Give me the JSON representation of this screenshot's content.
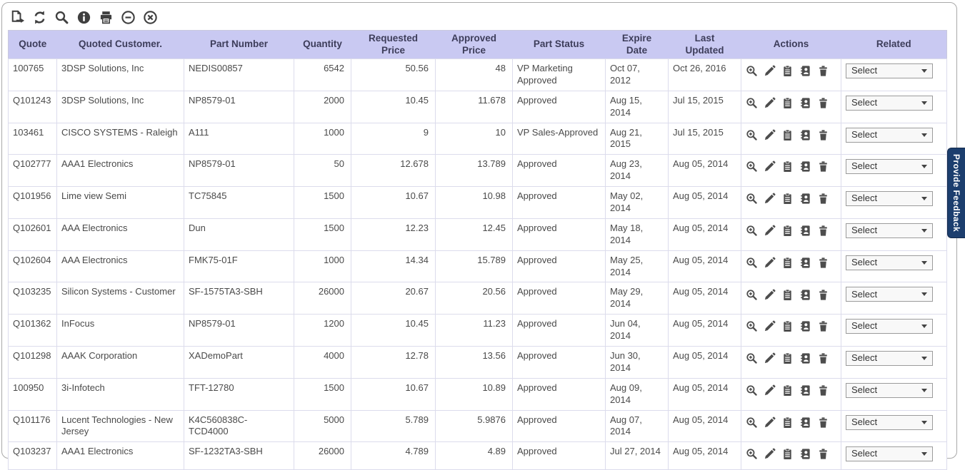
{
  "toolbar": {
    "icons": [
      {
        "name": "export-icon"
      },
      {
        "name": "refresh-icon"
      },
      {
        "name": "search-icon"
      },
      {
        "name": "info-icon"
      },
      {
        "name": "print-icon"
      },
      {
        "name": "minimize-icon"
      },
      {
        "name": "close-icon"
      }
    ]
  },
  "table": {
    "columns": [
      {
        "key": "quote",
        "label": "Quote"
      },
      {
        "key": "customer",
        "label": "Quoted Customer."
      },
      {
        "key": "part",
        "label": "Part Number"
      },
      {
        "key": "qty",
        "label": "Quantity"
      },
      {
        "key": "req_price",
        "label": "Requested Price"
      },
      {
        "key": "appr_price",
        "label": "Approved Price"
      },
      {
        "key": "status",
        "label": "Part Status"
      },
      {
        "key": "expire",
        "label": "Expire Date"
      },
      {
        "key": "updated",
        "label": "Last Updated"
      },
      {
        "key": "actions",
        "label": "Actions"
      },
      {
        "key": "related",
        "label": "Related"
      }
    ],
    "action_icons": [
      "zoom-icon",
      "edit-icon",
      "copy-icon",
      "contact-icon",
      "delete-icon"
    ],
    "related_default": "Select",
    "rows": [
      {
        "quote": "100765",
        "customer": "3DSP Solutions, Inc",
        "part": "NEDIS00857",
        "qty": "6542",
        "req_price": "50.56",
        "appr_price": "48",
        "status": "VP Marketing Approved",
        "expire": "Oct 07,\n2012",
        "updated": "Oct 26, 2016"
      },
      {
        "quote": "Q101243",
        "customer": "3DSP Solutions, Inc",
        "part": "NP8579-01",
        "qty": "2000",
        "req_price": "10.45",
        "appr_price": "11.678",
        "status": "Approved",
        "expire": "Aug 15,\n2014",
        "updated": "Jul 15, 2015"
      },
      {
        "quote": "103461",
        "customer": "CISCO SYSTEMS - Raleigh",
        "part": "A111",
        "qty": "1000",
        "req_price": "9",
        "appr_price": "10",
        "status": "VP Sales-Approved",
        "expire": "Aug 21,\n2015",
        "updated": "Jul 15, 2015"
      },
      {
        "quote": "Q102777",
        "customer": "AAA1 Electronics",
        "part": "NP8579-01",
        "qty": "50",
        "req_price": "12.678",
        "appr_price": "13.789",
        "status": "Approved",
        "expire": "Aug 23,\n2014",
        "updated": "Aug 05, 2014"
      },
      {
        "quote": "Q101956",
        "customer": "Lime view Semi",
        "part": "TC75845",
        "qty": "1500",
        "req_price": "10.67",
        "appr_price": "10.98",
        "status": "Approved",
        "expire": "May 02,\n2014",
        "updated": "Aug 05, 2014"
      },
      {
        "quote": "Q102601",
        "customer": "AAA Electronics",
        "part": "Dun",
        "qty": "1500",
        "req_price": "12.23",
        "appr_price": "12.45",
        "status": "Approved",
        "expire": "May 18,\n2014",
        "updated": "Aug 05, 2014"
      },
      {
        "quote": "Q102604",
        "customer": "AAA Electronics",
        "part": "FMK75-01F",
        "qty": "1000",
        "req_price": "14.34",
        "appr_price": "15.789",
        "status": "Approved",
        "expire": "May 25,\n2014",
        "updated": "Aug 05, 2014"
      },
      {
        "quote": "Q103235",
        "customer": "Silicon Systems - Customer",
        "part": "SF-1575TA3-SBH",
        "qty": "26000",
        "req_price": "20.67",
        "appr_price": "20.56",
        "status": "Approved",
        "expire": "May 29,\n2014",
        "updated": "Aug 05, 2014"
      },
      {
        "quote": "Q101362",
        "customer": "InFocus",
        "part": "NP8579-01",
        "qty": "1200",
        "req_price": "10.45",
        "appr_price": "11.23",
        "status": "Approved",
        "expire": "Jun 04,\n2014",
        "updated": "Aug 05, 2014"
      },
      {
        "quote": "Q101298",
        "customer": "AAAK Corporation",
        "part": "XADemoPart",
        "qty": "4000",
        "req_price": "12.78",
        "appr_price": "13.56",
        "status": "Approved",
        "expire": "Jun 30,\n2014",
        "updated": "Aug 05, 2014"
      },
      {
        "quote": "100950",
        "customer": "3i-Infotech",
        "part": "TFT-12780",
        "qty": "1500",
        "req_price": "10.67",
        "appr_price": "10.89",
        "status": "Approved",
        "expire": "Aug 09,\n2014",
        "updated": "Aug 05, 2014"
      },
      {
        "quote": "Q101176",
        "customer": "Lucent Technologies - New Jersey",
        "part": "K4C560838C-\nTCD4000",
        "qty": "5000",
        "req_price": "5.789",
        "appr_price": "5.9876",
        "status": "Approved",
        "expire": "Aug 07,\n2014",
        "updated": "Aug 05, 2014"
      },
      {
        "quote": "Q103237",
        "customer": "AAA1 Electronics",
        "part": "SF-1232TA3-SBH",
        "qty": "26000",
        "req_price": "4.789",
        "appr_price": "4.89",
        "status": "Approved",
        "expire": "Jul 27, 2014",
        "updated": "Aug 05, 2014"
      }
    ]
  },
  "feedback_tab": {
    "label": "Provide Feedback"
  },
  "colors": {
    "header_bg": "#c9c9f2",
    "accent": "#1c3e6e"
  }
}
